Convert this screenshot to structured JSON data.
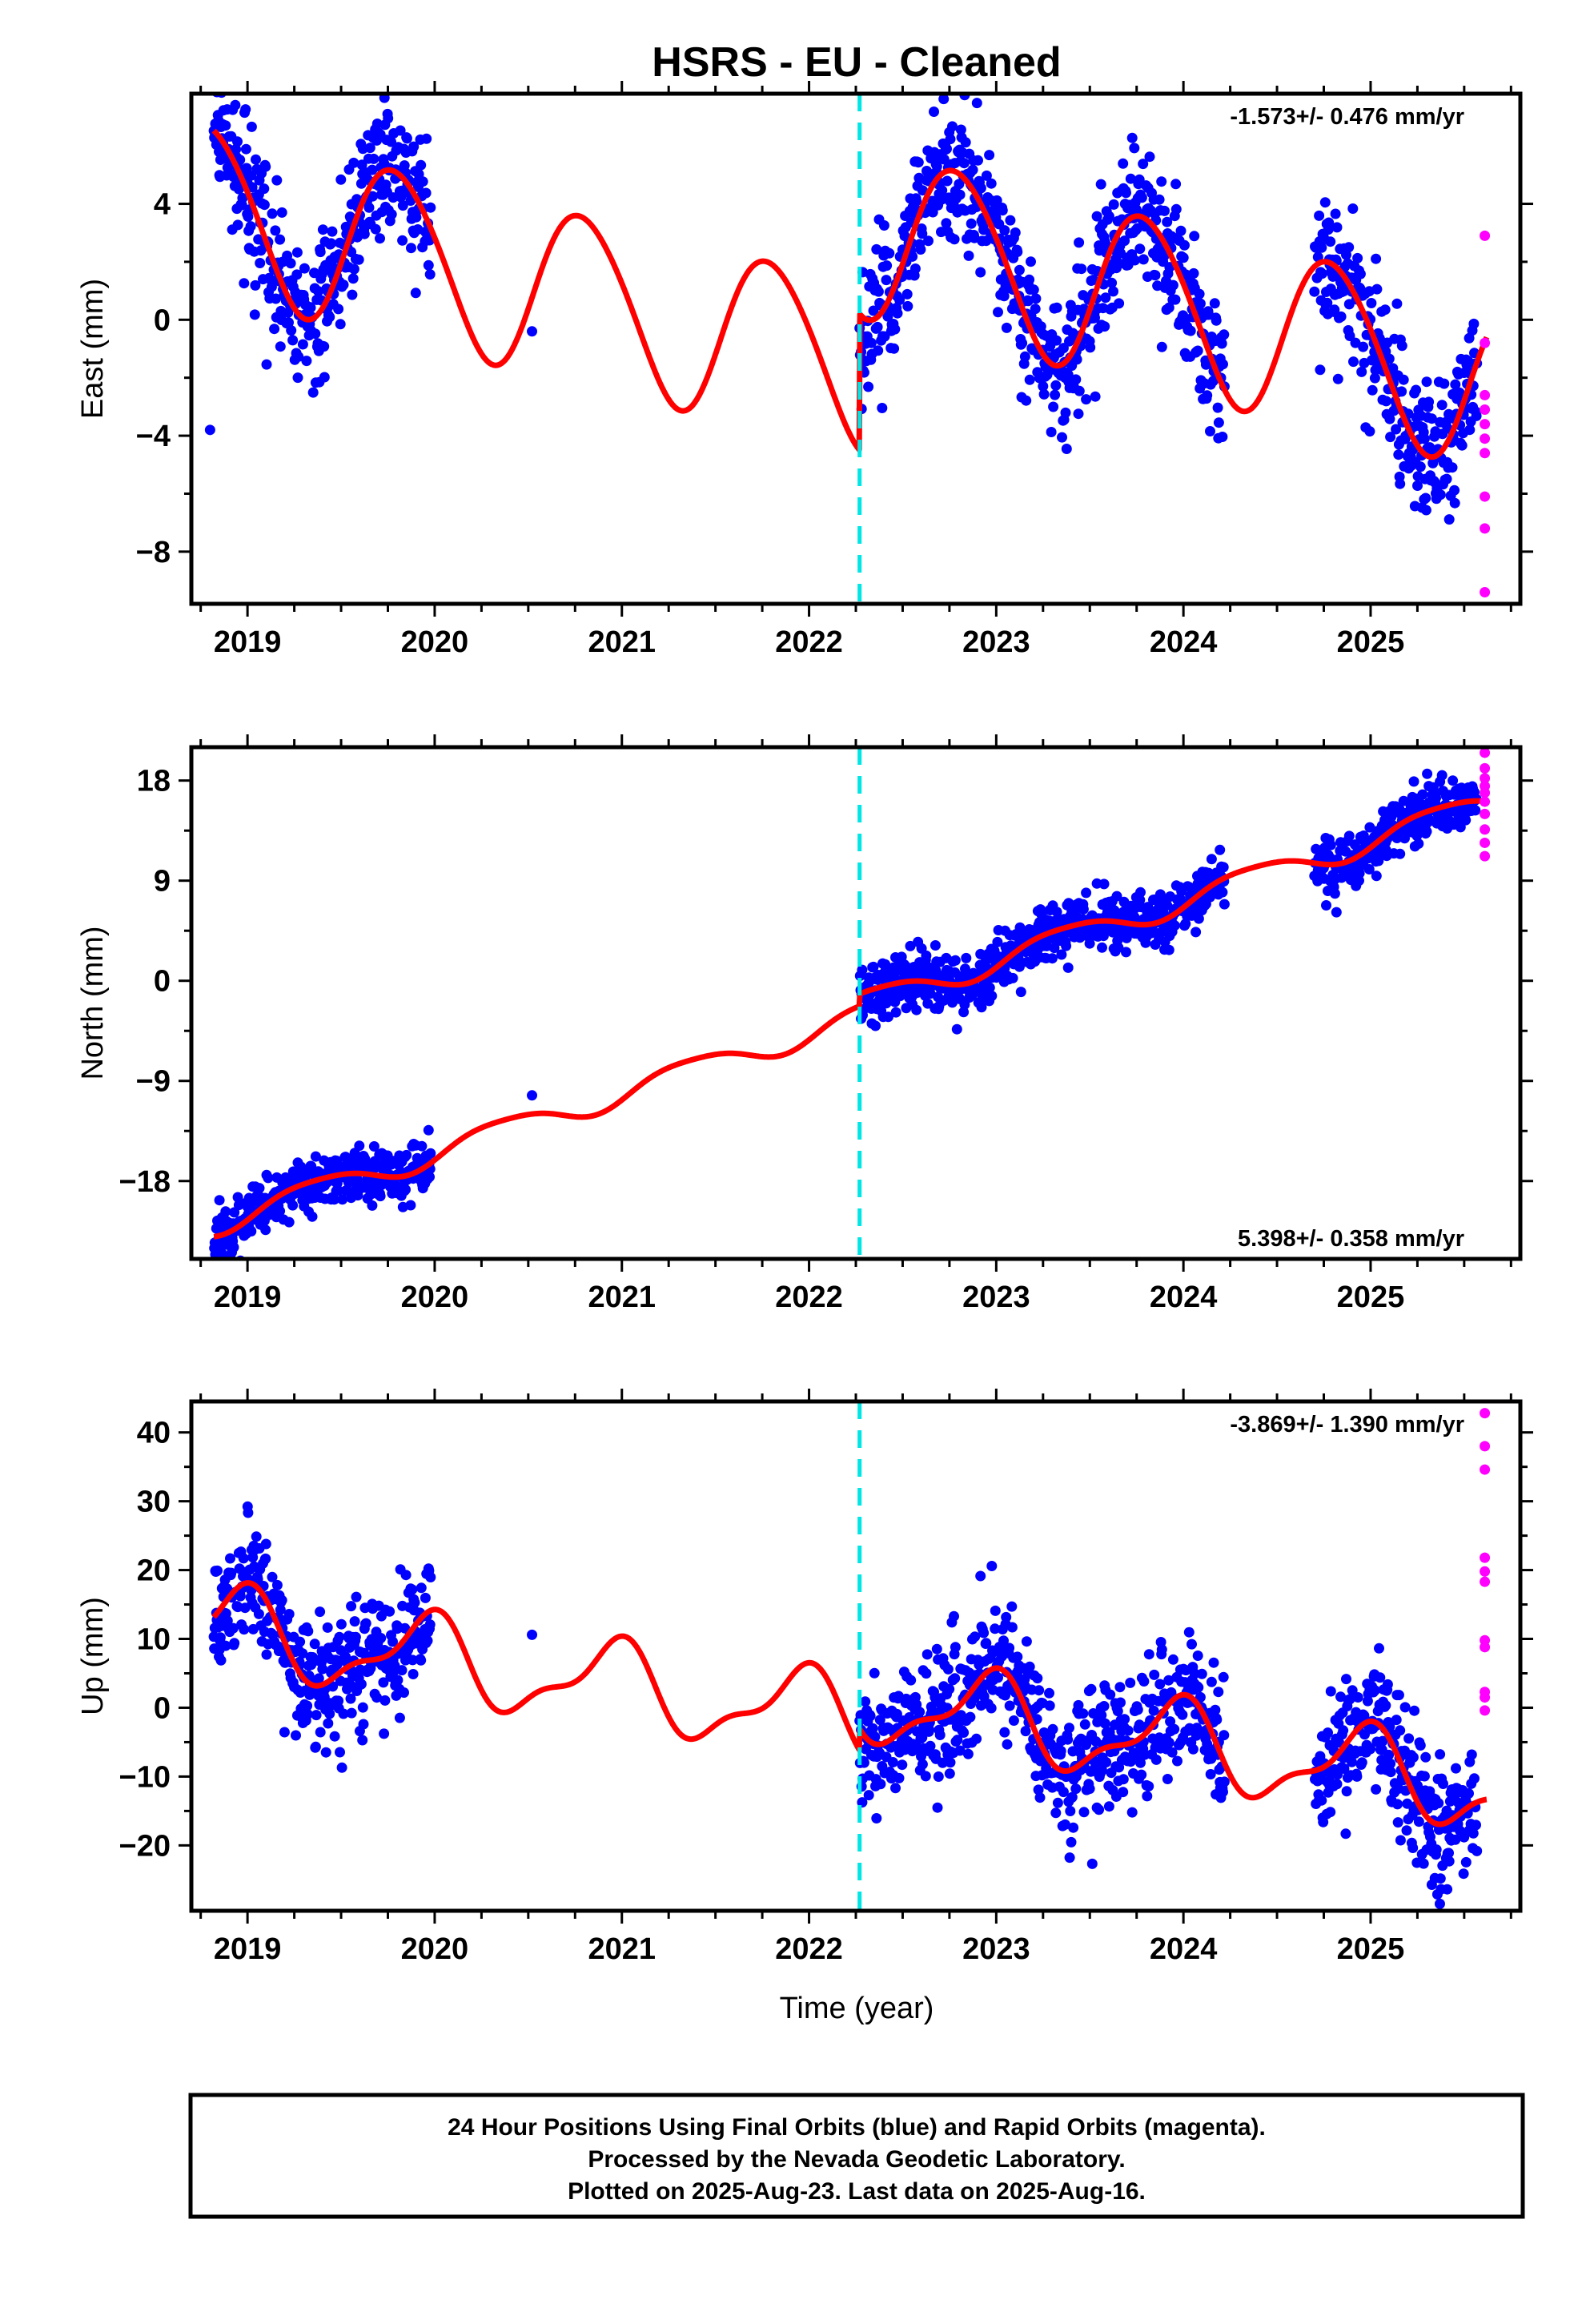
{
  "title": "HSRS  - EU - Cleaned",
  "xlabel": "Time (year)",
  "x_ticks": [
    "2019",
    "2020",
    "2021",
    "2022",
    "2023",
    "2024",
    "2025"
  ],
  "footer": [
    "24 Hour Positions Using Final Orbits (blue) and Rapid Orbits (magenta).",
    "Processed by the Nevada Geodetic Laboratory.",
    "Plotted on 2025-Aug-23. Last data on 2025-Aug-16."
  ],
  "colors": {
    "final_orbits": "#0000ff",
    "rapid_orbits": "#ff00ff",
    "model_fit": "#ff0000",
    "equipment_change": "#00e5e5",
    "frame": "#000000"
  },
  "chart_data": [
    {
      "type": "scatter",
      "component": "east",
      "ylabel": "East (mm)",
      "rate_label": "-1.573+/- 0.476 mm/yr",
      "rate_position": "top-right",
      "xlim": [
        2018.7,
        2025.8
      ],
      "ylim": [
        -9.8,
        7.8
      ],
      "y_ticks": [
        -8,
        -4,
        0,
        4
      ],
      "equipment_change_x": 2022.27,
      "data_ranges": [
        [
          2018.82,
          2019.98
        ],
        [
          2022.27,
          2024.22
        ],
        [
          2024.7,
          2025.57
        ]
      ],
      "outliers": [
        [
          2018.8,
          -3.8
        ],
        [
          2020.52,
          -0.4
        ]
      ],
      "noise_sd": 1.2,
      "model": {
        "trend_rate": -1.573,
        "trend_ref_year": 2022.0,
        "segments": [
          {
            "from": 2018.82,
            "to": 2022.27,
            "offset": -1.15
          },
          {
            "from": 2022.27,
            "to": 2025.62,
            "offset": 3.55
          }
        ],
        "annual": {
          "amp": 2.9,
          "phase": 2.85
        },
        "semiannual": {
          "amp": 0.25,
          "phase": 0.0
        }
      },
      "rapid_points": [
        [
          2025.61,
          2.9
        ],
        [
          2025.61,
          -0.8
        ],
        [
          2025.61,
          -2.6
        ],
        [
          2025.61,
          -3.1
        ],
        [
          2025.61,
          -3.6
        ],
        [
          2025.61,
          -4.1
        ],
        [
          2025.61,
          -4.6
        ],
        [
          2025.61,
          -6.1
        ],
        [
          2025.61,
          -7.2
        ],
        [
          2025.61,
          -9.4
        ]
      ]
    },
    {
      "type": "scatter",
      "component": "north",
      "ylabel": "North (mm)",
      "rate_label": "5.398+/- 0.358 mm/yr",
      "rate_position": "bottom-right",
      "xlim": [
        2018.7,
        2025.8
      ],
      "ylim": [
        -25,
        21
      ],
      "y_ticks": [
        -18,
        -9,
        0,
        9,
        18
      ],
      "equipment_change_x": 2022.27,
      "data_ranges": [
        [
          2018.82,
          2019.98
        ],
        [
          2022.27,
          2024.22
        ],
        [
          2024.7,
          2025.57
        ]
      ],
      "outliers": [
        [
          2020.52,
          -10.3
        ]
      ],
      "noise_sd": 1.25,
      "model": {
        "trend_rate": 5.398,
        "trend_ref_year": 2022.0,
        "segments": [
          {
            "from": 2018.82,
            "to": 2022.27,
            "offset": -4.62
          },
          {
            "from": 2022.27,
            "to": 2025.62,
            "offset": -3.52
          }
        ],
        "annual": {
          "amp": 1.1,
          "phase": 5.6
        },
        "semiannual": {
          "amp": 0.2,
          "phase": 0.0
        }
      },
      "rapid_points": [
        [
          2025.61,
          20.5
        ],
        [
          2025.61,
          19.1
        ],
        [
          2025.61,
          18.2
        ],
        [
          2025.61,
          17.5
        ],
        [
          2025.61,
          16.9
        ],
        [
          2025.61,
          16.1
        ],
        [
          2025.61,
          15.0
        ],
        [
          2025.61,
          13.6
        ],
        [
          2025.61,
          12.4
        ],
        [
          2025.61,
          11.2
        ]
      ]
    },
    {
      "type": "scatter",
      "component": "up",
      "ylabel": "Up (mm)",
      "rate_label": "-3.869+/- 1.390 mm/yr",
      "rate_position": "top-right",
      "xlim": [
        2018.7,
        2025.8
      ],
      "ylim": [
        -29.5,
        44.5
      ],
      "y_ticks": [
        -20,
        -10,
        0,
        10,
        20,
        30,
        40
      ],
      "equipment_change_x": 2022.27,
      "data_ranges": [
        [
          2018.82,
          2019.98
        ],
        [
          2022.27,
          2024.22
        ],
        [
          2024.7,
          2025.57
        ]
      ],
      "outliers": [
        [
          2020.52,
          10.6
        ],
        [
          2019.6,
          -3.4
        ],
        [
          2025.37,
          -28.5
        ]
      ],
      "noise_sd": 4.6,
      "model": {
        "trend_rate": -3.869,
        "trend_ref_year": 2022.0,
        "segments": [
          {
            "from": 2018.82,
            "to": 2022.27,
            "offset": -0.8
          },
          {
            "from": 2022.27,
            "to": 2025.62,
            "offset": 2.3
          }
        ],
        "annual": {
          "amp": 5.7,
          "phase": 1.85
        },
        "semiannual": {
          "amp": 2.2,
          "phase": 1.0
        }
      },
      "rapid_points": [
        [
          2025.61,
          42.8
        ],
        [
          2025.61,
          38.0
        ],
        [
          2025.61,
          34.6
        ],
        [
          2025.61,
          21.8
        ],
        [
          2025.61,
          19.8
        ],
        [
          2025.61,
          18.3
        ],
        [
          2025.61,
          9.8
        ],
        [
          2025.61,
          8.8
        ],
        [
          2025.61,
          2.3
        ],
        [
          2025.61,
          1.5
        ],
        [
          2025.61,
          -0.4
        ]
      ]
    }
  ]
}
